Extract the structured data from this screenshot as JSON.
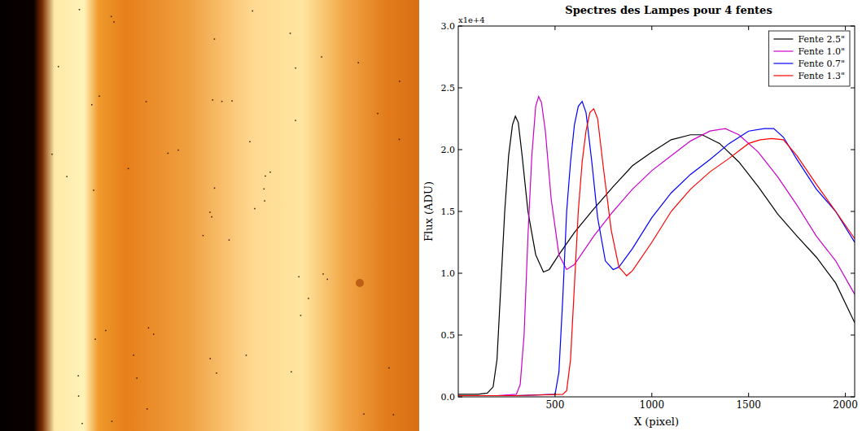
{
  "chart_data": {
    "type": "line",
    "title": "Spectres des Lampes pour 4 fentes",
    "x_label": "X (pixel)",
    "y_label": "Flux (ADU)",
    "y_scale_label": "x1e+4",
    "xlim": [
      0,
      2048
    ],
    "ylim": [
      0,
      3
    ],
    "xticks": [
      500,
      1000,
      1500,
      2000
    ],
    "yticks": [
      {
        "value": 0,
        "label": "0.0"
      },
      {
        "value": 0.5,
        "label": "0.5"
      },
      {
        "value": 1,
        "label": "1.0"
      },
      {
        "value": 1.5,
        "label": "1.5"
      },
      {
        "value": 2,
        "label": "2.0"
      },
      {
        "value": 2.5,
        "label": "2.5"
      },
      {
        "value": 3,
        "label": "3.0"
      }
    ],
    "grid": false,
    "legend": "upper right",
    "series": [
      {
        "name": "Fente 2.5\"",
        "color": "#000000",
        "x": [
          0,
          100,
          150,
          180,
          200,
          220,
          240,
          260,
          280,
          295,
          310,
          330,
          360,
          400,
          440,
          470,
          520,
          600,
          700,
          800,
          900,
          1000,
          1100,
          1200,
          1260,
          1350,
          1450,
          1550,
          1650,
          1750,
          1850,
          1950,
          2048
        ],
        "values": [
          0.02,
          0.02,
          0.03,
          0.08,
          0.3,
          0.9,
          1.5,
          1.95,
          2.2,
          2.27,
          2.22,
          1.95,
          1.5,
          1.15,
          1.01,
          1.03,
          1.15,
          1.33,
          1.52,
          1.7,
          1.87,
          1.98,
          2.08,
          2.12,
          2.12,
          2.05,
          1.9,
          1.7,
          1.48,
          1.3,
          1.13,
          0.92,
          0.6
        ]
      },
      {
        "name": "Fente 1.0\"",
        "color": "#cc00cc",
        "x": [
          0,
          200,
          300,
          320,
          340,
          360,
          380,
          400,
          415,
          430,
          450,
          480,
          520,
          560,
          600,
          700,
          800,
          900,
          1000,
          1100,
          1200,
          1300,
          1380,
          1450,
          1550,
          1650,
          1750,
          1850,
          1950,
          2048
        ],
        "values": [
          0.01,
          0.01,
          0.02,
          0.1,
          0.5,
          1.3,
          1.95,
          2.35,
          2.43,
          2.38,
          2.15,
          1.6,
          1.15,
          1.03,
          1.07,
          1.3,
          1.5,
          1.68,
          1.83,
          1.95,
          2.07,
          2.15,
          2.17,
          2.12,
          1.98,
          1.78,
          1.55,
          1.3,
          1.1,
          0.83
        ]
      },
      {
        "name": "Fente 0.7\"",
        "color": "#0000ff",
        "x": [
          0,
          300,
          500,
          520,
          540,
          560,
          580,
          600,
          620,
          640,
          660,
          690,
          720,
          760,
          800,
          830,
          900,
          1000,
          1100,
          1200,
          1300,
          1400,
          1500,
          1580,
          1630,
          1680,
          1750,
          1850,
          1950,
          2048
        ],
        "values": [
          0.01,
          0.01,
          0.02,
          0.2,
          0.8,
          1.5,
          1.9,
          2.2,
          2.35,
          2.39,
          2.3,
          1.9,
          1.45,
          1.1,
          1.03,
          1.05,
          1.2,
          1.45,
          1.65,
          1.8,
          1.92,
          2.05,
          2.15,
          2.17,
          2.17,
          2.1,
          1.92,
          1.68,
          1.5,
          1.25
        ]
      },
      {
        "name": "Fente 1.3\"",
        "color": "#ff0000",
        "x": [
          0,
          300,
          540,
          560,
          580,
          600,
          620,
          640,
          660,
          680,
          700,
          720,
          750,
          790,
          830,
          870,
          900,
          1000,
          1100,
          1200,
          1300,
          1400,
          1500,
          1560,
          1620,
          1680,
          1750,
          1850,
          1950,
          2048
        ],
        "values": [
          0.01,
          0.01,
          0.02,
          0.05,
          0.3,
          0.9,
          1.5,
          1.9,
          2.15,
          2.3,
          2.33,
          2.25,
          1.85,
          1.35,
          1.05,
          0.98,
          1.02,
          1.25,
          1.5,
          1.68,
          1.82,
          1.93,
          2.05,
          2.08,
          2.09,
          2.08,
          1.95,
          1.72,
          1.5,
          1.28
        ]
      }
    ]
  }
}
